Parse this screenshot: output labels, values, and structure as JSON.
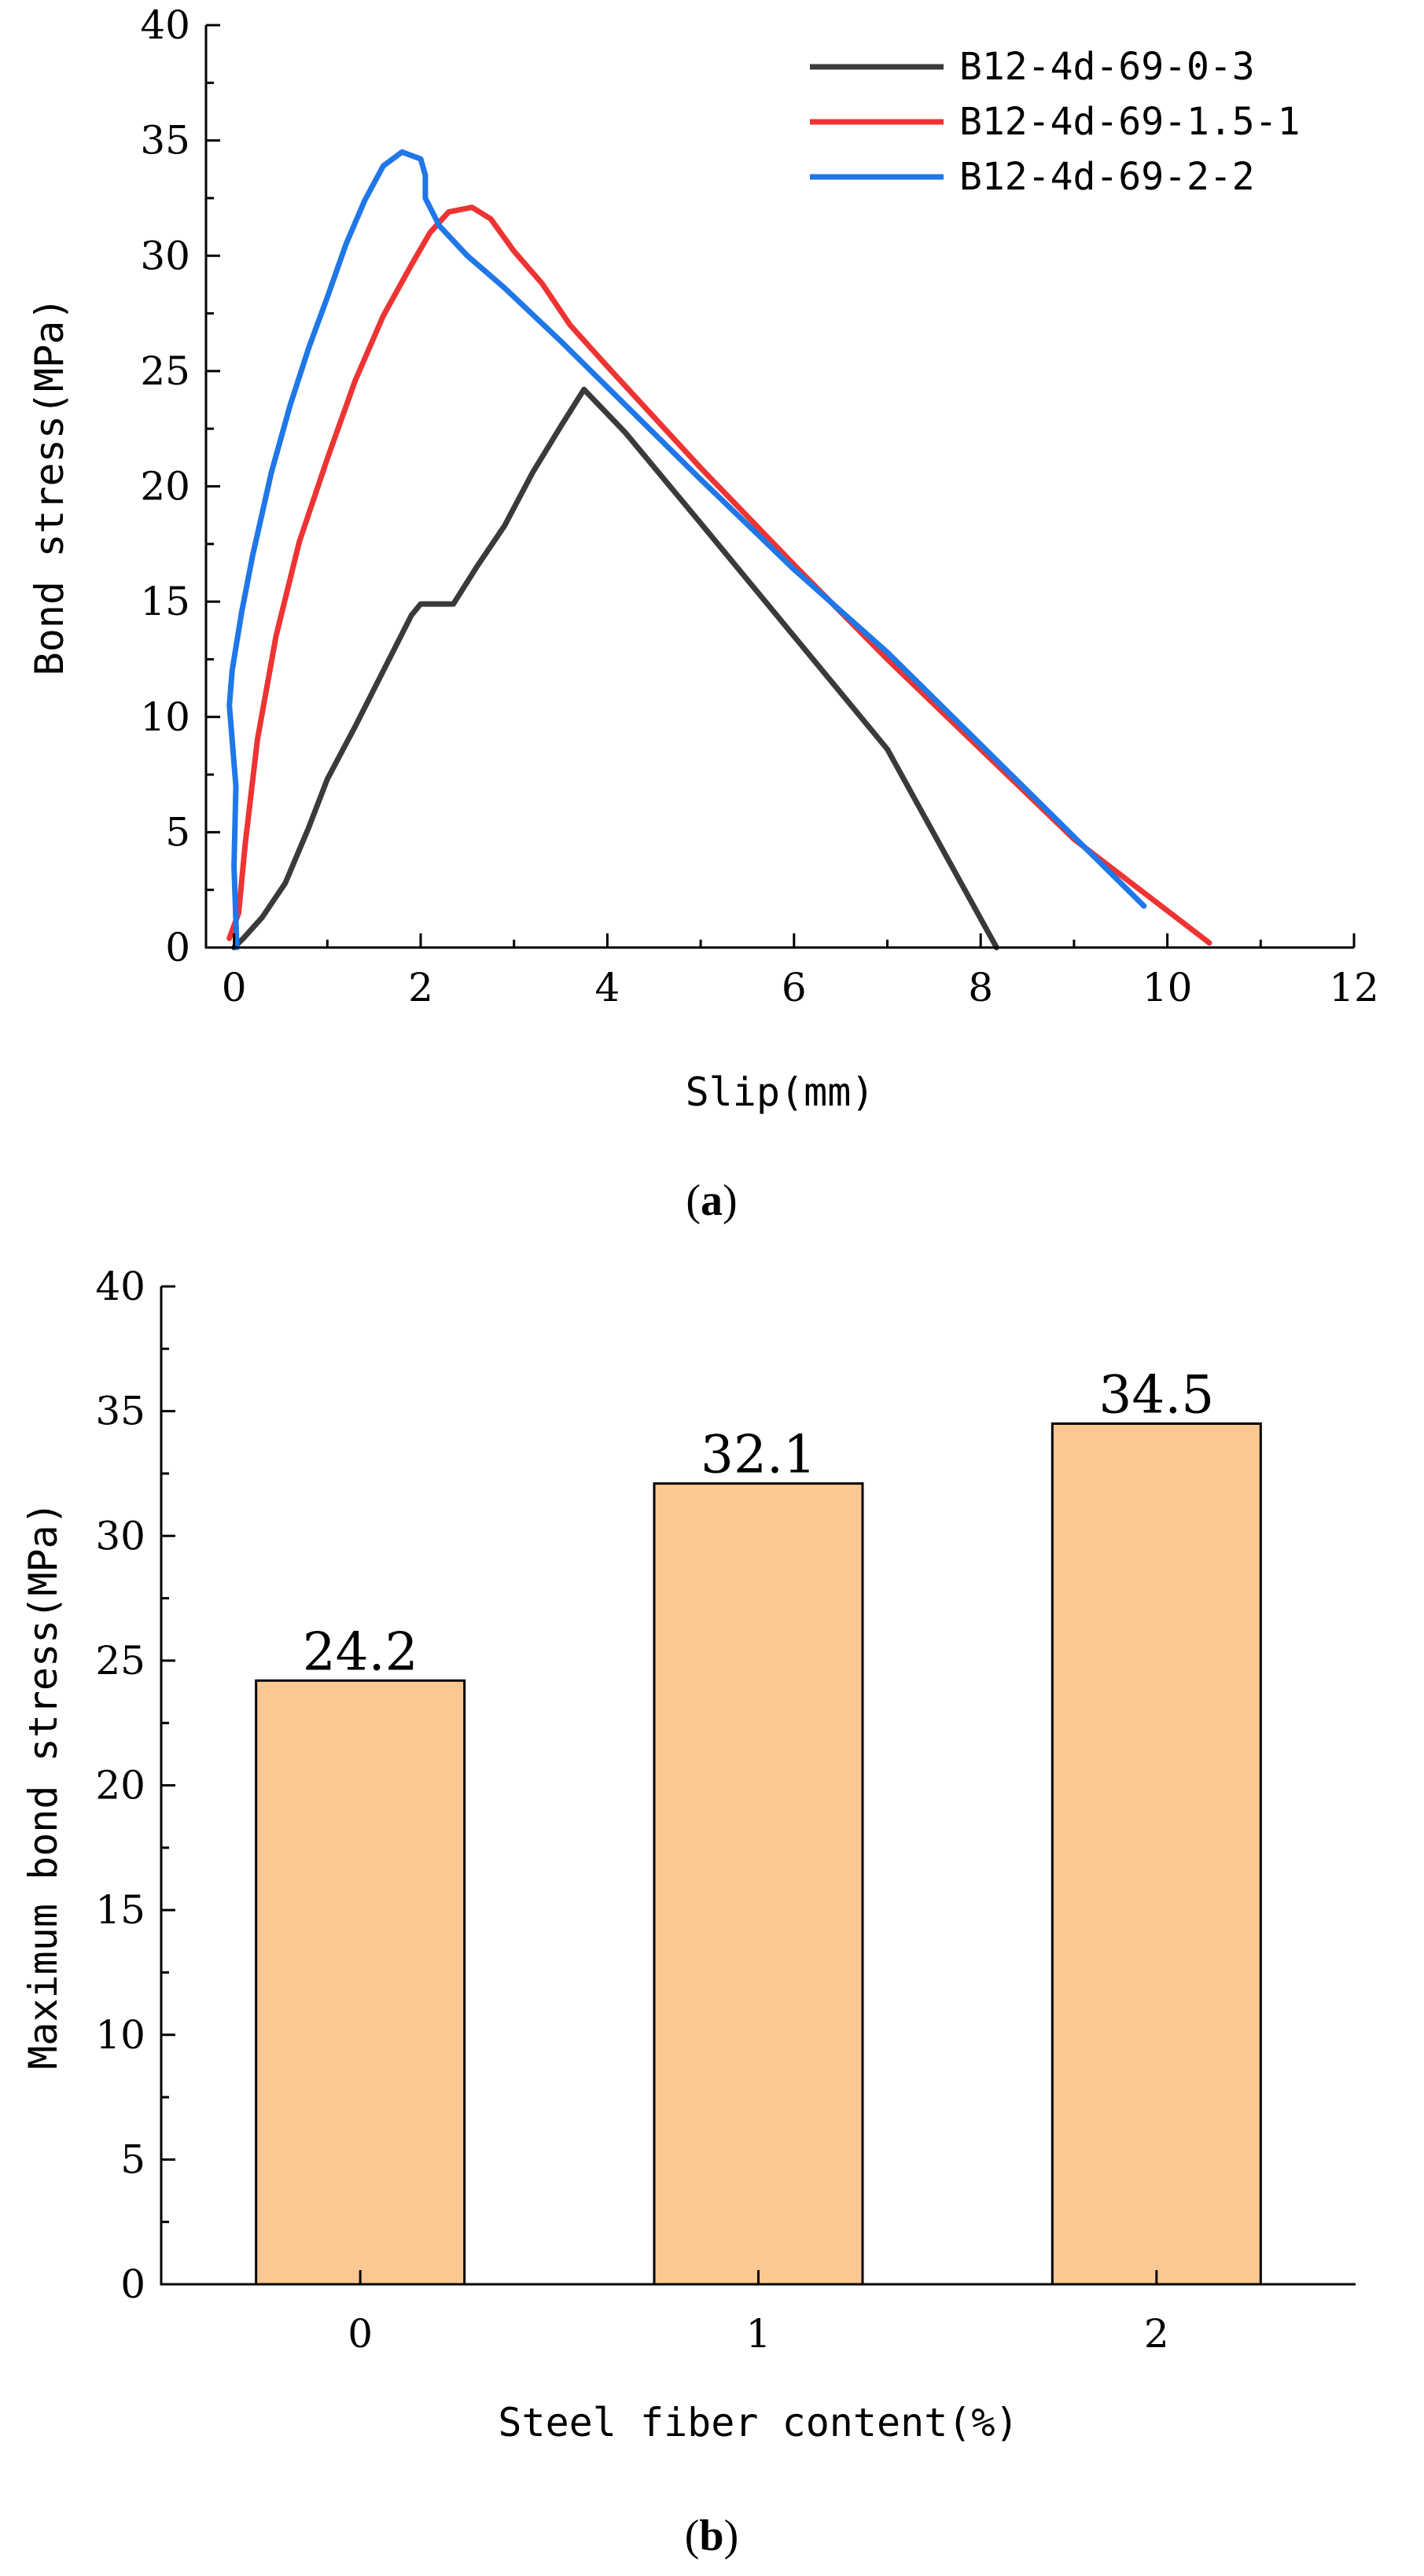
{
  "chart_data": [
    {
      "id": "a",
      "type": "line",
      "panel_label": "a",
      "title": "",
      "xlabel": "Slip(mm)",
      "ylabel": "Bond stress(MPa)",
      "xlim": [
        -0.3,
        12
      ],
      "ylim": [
        0,
        40
      ],
      "xticks": [
        0,
        2,
        4,
        6,
        8,
        10,
        12
      ],
      "yticks": [
        0,
        5,
        10,
        15,
        20,
        25,
        30,
        35,
        40
      ],
      "legend_position": "top-right",
      "series": [
        {
          "name": "B12-4d-69-0-3",
          "color": "#3a3a3a",
          "points": [
            [
              0.0,
              0
            ],
            [
              0.1,
              0.4
            ],
            [
              0.3,
              1.3
            ],
            [
              0.55,
              2.8
            ],
            [
              0.8,
              5.2
            ],
            [
              1.0,
              7.3
            ],
            [
              1.3,
              9.6
            ],
            [
              1.6,
              12.0
            ],
            [
              1.9,
              14.4
            ],
            [
              2.0,
              14.9
            ],
            [
              2.35,
              14.9
            ],
            [
              2.6,
              16.5
            ],
            [
              2.9,
              18.3
            ],
            [
              3.2,
              20.6
            ],
            [
              3.5,
              22.6
            ],
            [
              3.75,
              24.2
            ],
            [
              4.2,
              22.3
            ],
            [
              5.0,
              18.4
            ],
            [
              6.0,
              13.5
            ],
            [
              7.0,
              8.6
            ],
            [
              8.17,
              0
            ]
          ]
        },
        {
          "name": "B12-4d-69-1.5-1",
          "color": "#ee3333",
          "points": [
            [
              -0.05,
              0.4
            ],
            [
              0.05,
              1.5
            ],
            [
              0.12,
              4.5
            ],
            [
              0.25,
              9.0
            ],
            [
              0.45,
              13.5
            ],
            [
              0.7,
              17.6
            ],
            [
              1.0,
              21.2
            ],
            [
              1.3,
              24.6
            ],
            [
              1.6,
              27.4
            ],
            [
              1.9,
              29.6
            ],
            [
              2.1,
              31.0
            ],
            [
              2.3,
              31.9
            ],
            [
              2.55,
              32.1
            ],
            [
              2.75,
              31.6
            ],
            [
              3.0,
              30.2
            ],
            [
              3.3,
              28.8
            ],
            [
              3.6,
              27.0
            ],
            [
              4.0,
              25.2
            ],
            [
              5.0,
              20.8
            ],
            [
              6.0,
              16.6
            ],
            [
              7.0,
              12.5
            ],
            [
              8.0,
              8.6
            ],
            [
              9.0,
              4.7
            ],
            [
              10.45,
              0.2
            ]
          ]
        },
        {
          "name": "B12-4d-69-2-2",
          "color": "#1f77e8",
          "points": [
            [
              0.03,
              0
            ],
            [
              0.0,
              3.5
            ],
            [
              0.02,
              7.0
            ],
            [
              -0.05,
              10.5
            ],
            [
              -0.02,
              12.0
            ],
            [
              0.08,
              14.5
            ],
            [
              0.2,
              17.0
            ],
            [
              0.4,
              20.6
            ],
            [
              0.6,
              23.5
            ],
            [
              0.8,
              26.0
            ],
            [
              1.0,
              28.2
            ],
            [
              1.2,
              30.5
            ],
            [
              1.4,
              32.4
            ],
            [
              1.6,
              33.9
            ],
            [
              1.8,
              34.5
            ],
            [
              2.0,
              34.2
            ],
            [
              2.05,
              33.5
            ],
            [
              2.05,
              32.5
            ],
            [
              2.2,
              31.3
            ],
            [
              2.5,
              30.0
            ],
            [
              2.9,
              28.6
            ],
            [
              3.5,
              26.3
            ],
            [
              4.0,
              24.3
            ],
            [
              5.0,
              20.3
            ],
            [
              6.0,
              16.4
            ],
            [
              7.0,
              12.8
            ],
            [
              8.0,
              8.8
            ],
            [
              9.0,
              4.8
            ],
            [
              9.75,
              1.8
            ]
          ]
        }
      ]
    },
    {
      "id": "b",
      "type": "bar",
      "panel_label": "b",
      "title": "",
      "xlabel": "Steel fiber content(%)",
      "ylabel": "Maximum bond stress(MPa)",
      "categories": [
        "0",
        "1",
        "2"
      ],
      "values": [
        24.2,
        32.1,
        34.5
      ],
      "value_labels": [
        "24.2",
        "32.1",
        "34.5"
      ],
      "ylim": [
        0,
        40
      ],
      "yticks": [
        0,
        5,
        10,
        15,
        20,
        25,
        30,
        35,
        40
      ],
      "bar_color": "#fcc892"
    }
  ]
}
